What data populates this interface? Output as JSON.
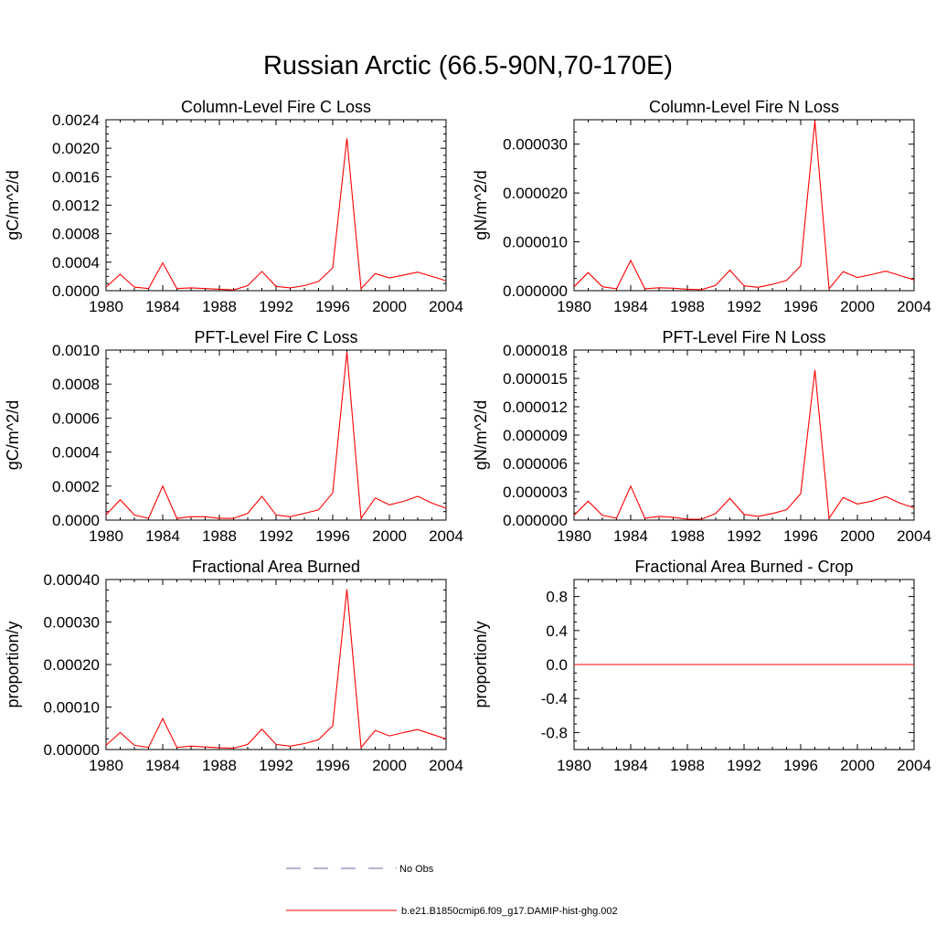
{
  "title": "Russian Arctic (66.5-90N,70-170E)",
  "colors": {
    "model": "#ff0000",
    "obs": "#6a6aa6",
    "axis": "#000000"
  },
  "legend": {
    "placement": "bottom-center",
    "items": [
      {
        "label": "No Obs",
        "style": "dashed",
        "color": "#6a6aa6"
      },
      {
        "label": "b.e21.B1850cmip6.f09_g17.DAMIP-hist-ghg.002",
        "style": "solid",
        "color": "#ff0000"
      }
    ]
  },
  "chart_data": [
    {
      "type": "line",
      "title": "Column-Level Fire C Loss",
      "xlabel": "",
      "ylabel": "gC/m^2/d",
      "xlim": [
        1980,
        2004
      ],
      "ylim": [
        0,
        0.0024
      ],
      "xticks": [
        "1980",
        "1984",
        "1988",
        "1992",
        "1996",
        "2000",
        "2004"
      ],
      "yticks": [
        "0.0000",
        "0.0004",
        "0.0008",
        "0.0012",
        "0.0016",
        "0.0020",
        "0.0024"
      ],
      "x": [
        1980,
        1981,
        1982,
        1983,
        1984,
        1985,
        1986,
        1987,
        1988,
        1989,
        1990,
        1991,
        1992,
        1993,
        1994,
        1995,
        1996,
        1997,
        1998,
        1999,
        2000,
        2001,
        2002,
        2003,
        2004
      ],
      "series": [
        {
          "name": "b.e21.B1850cmip6.f09_g17.DAMIP-hist-ghg.002",
          "values": [
            5e-05,
            0.00023,
            5e-05,
            3e-05,
            0.00039,
            3e-05,
            4e-05,
            3e-05,
            2e-05,
            1e-05,
            7e-05,
            0.00027,
            6e-05,
            4e-05,
            7e-05,
            0.00013,
            0.00032,
            0.00214,
            3e-05,
            0.00024,
            0.00018,
            0.00022,
            0.00026,
            0.0002,
            0.00014
          ]
        }
      ]
    },
    {
      "type": "line",
      "title": "Column-Level Fire N Loss",
      "xlabel": "",
      "ylabel": "gN/m^2/d",
      "xlim": [
        1980,
        2004
      ],
      "ylim": [
        0,
        3.5e-05
      ],
      "xticks": [
        "1980",
        "1984",
        "1988",
        "1992",
        "1996",
        "2000",
        "2004"
      ],
      "yticks": [
        "0.000000",
        "0.000010",
        "0.000020",
        "0.000030"
      ],
      "x": [
        1980,
        1981,
        1982,
        1983,
        1984,
        1985,
        1986,
        1987,
        1988,
        1989,
        1990,
        1991,
        1992,
        1993,
        1994,
        1995,
        1996,
        1997,
        1998,
        1999,
        2000,
        2001,
        2002,
        2003,
        2004
      ],
      "series": [
        {
          "name": "b.e21.B1850cmip6.f09_g17.DAMIP-hist-ghg.002",
          "values": [
            8e-07,
            3.7e-06,
            8e-07,
            4e-07,
            6.2e-06,
            4e-07,
            6e-07,
            5e-07,
            3e-07,
            2e-07,
            1.1e-06,
            4.2e-06,
            1e-06,
            7e-07,
            1.3e-06,
            2.1e-06,
            5.1e-06,
            3.48e-05,
            4e-07,
            3.9e-06,
            2.7e-06,
            3.3e-06,
            4e-06,
            3.1e-06,
            2.2e-06
          ]
        }
      ]
    },
    {
      "type": "line",
      "title": "PFT-Level Fire C Loss",
      "xlabel": "",
      "ylabel": "gC/m^2/d",
      "xlim": [
        1980,
        2004
      ],
      "ylim": [
        0,
        0.001
      ],
      "xticks": [
        "1980",
        "1984",
        "1988",
        "1992",
        "1996",
        "2000",
        "2004"
      ],
      "yticks": [
        "0.0000",
        "0.0002",
        "0.0004",
        "0.0006",
        "0.0008",
        "0.0010"
      ],
      "x": [
        1980,
        1981,
        1982,
        1983,
        1984,
        1985,
        1986,
        1987,
        1988,
        1989,
        1990,
        1991,
        1992,
        1993,
        1994,
        1995,
        1996,
        1997,
        1998,
        1999,
        2000,
        2001,
        2002,
        2003,
        2004
      ],
      "series": [
        {
          "name": "b.e21.B1850cmip6.f09_g17.DAMIP-hist-ghg.002",
          "values": [
            3e-05,
            0.00012,
            3e-05,
            1e-05,
            0.0002,
            1e-05,
            2e-05,
            2e-05,
            1e-05,
            1e-05,
            4e-05,
            0.00014,
            3e-05,
            2e-05,
            4e-05,
            6e-05,
            0.00016,
            0.00099,
            1e-05,
            0.00013,
            9e-05,
            0.00011,
            0.00014,
            0.0001,
            7e-05
          ]
        }
      ]
    },
    {
      "type": "line",
      "title": "PFT-Level Fire N Loss",
      "xlabel": "",
      "ylabel": "gN/m^2/d",
      "xlim": [
        1980,
        2004
      ],
      "ylim": [
        0,
        1.8e-05
      ],
      "xticks": [
        "1980",
        "1984",
        "1988",
        "1992",
        "1996",
        "2000",
        "2004"
      ],
      "yticks": [
        "0.000000",
        "0.000003",
        "0.000006",
        "0.000009",
        "0.000012",
        "0.000015",
        "0.000018"
      ],
      "x": [
        1980,
        1981,
        1982,
        1983,
        1984,
        1985,
        1986,
        1987,
        1988,
        1989,
        1990,
        1991,
        1992,
        1993,
        1994,
        1995,
        1996,
        1997,
        1998,
        1999,
        2000,
        2001,
        2002,
        2003,
        2004
      ],
      "series": [
        {
          "name": "b.e21.B1850cmip6.f09_g17.DAMIP-hist-ghg.002",
          "values": [
            5e-07,
            2e-06,
            5e-07,
            2e-07,
            3.6e-06,
            2e-07,
            4e-07,
            3e-07,
            1e-07,
            1e-07,
            7e-07,
            2.3e-06,
            6e-07,
            4e-07,
            7e-07,
            1.1e-06,
            2.8e-06,
            1.59e-05,
            2e-07,
            2.4e-06,
            1.7e-06,
            2e-06,
            2.5e-06,
            1.8e-06,
            1.3e-06
          ]
        }
      ]
    },
    {
      "type": "line",
      "title": "Fractional Area Burned",
      "xlabel": "",
      "ylabel": "proportion/y",
      "xlim": [
        1980,
        2004
      ],
      "ylim": [
        0,
        0.0004
      ],
      "xticks": [
        "1980",
        "1984",
        "1988",
        "1992",
        "1996",
        "2000",
        "2004"
      ],
      "yticks": [
        "0.00000",
        "0.00010",
        "0.00020",
        "0.00030",
        "0.00040"
      ],
      "x": [
        1980,
        1981,
        1982,
        1983,
        1984,
        1985,
        1986,
        1987,
        1988,
        1989,
        1990,
        1991,
        1992,
        1993,
        1994,
        1995,
        1996,
        1997,
        1998,
        1999,
        2000,
        2001,
        2002,
        2003,
        2004
      ],
      "series": [
        {
          "name": "b.e21.B1850cmip6.f09_g17.DAMIP-hist-ghg.002",
          "values": [
            1e-05,
            4e-05,
            1e-05,
            5e-06,
            7.3e-05,
            5e-06,
            8e-06,
            6e-06,
            4e-06,
            3e-06,
            1.2e-05,
            4.8e-05,
            1.2e-05,
            8e-06,
            1.4e-05,
            2.3e-05,
            5.6e-05,
            0.000377,
            5e-06,
            4.5e-05,
            3.2e-05,
            4e-05,
            4.7e-05,
            3.6e-05,
            2.5e-05
          ]
        }
      ]
    },
    {
      "type": "line",
      "title": "Fractional Area Burned - Crop",
      "xlabel": "",
      "ylabel": "proportion/y",
      "xlim": [
        1980,
        2004
      ],
      "ylim": [
        -1,
        1
      ],
      "xticks": [
        "1980",
        "1984",
        "1988",
        "1992",
        "1996",
        "2000",
        "2004"
      ],
      "yticks": [
        "-0.8",
        "-0.4",
        "0.0",
        "0.4",
        "0.8"
      ],
      "x": [
        1980,
        1981,
        1982,
        1983,
        1984,
        1985,
        1986,
        1987,
        1988,
        1989,
        1990,
        1991,
        1992,
        1993,
        1994,
        1995,
        1996,
        1997,
        1998,
        1999,
        2000,
        2001,
        2002,
        2003,
        2004
      ],
      "series": [
        {
          "name": "b.e21.B1850cmip6.f09_g17.DAMIP-hist-ghg.002",
          "values": [
            0,
            0,
            0,
            0,
            0,
            0,
            0,
            0,
            0,
            0,
            0,
            0,
            0,
            0,
            0,
            0,
            0,
            0,
            0,
            0,
            0,
            0,
            0,
            0,
            0
          ]
        }
      ]
    }
  ]
}
